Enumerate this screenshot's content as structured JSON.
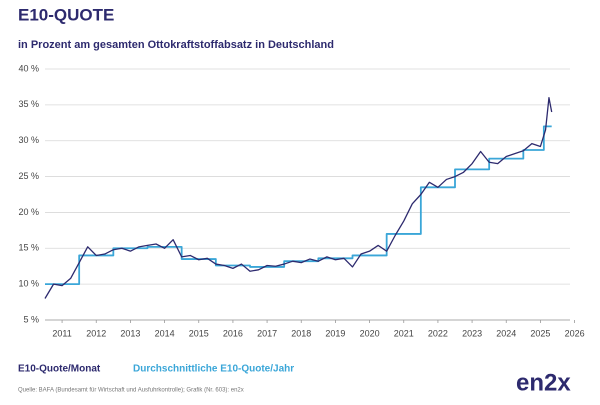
{
  "chart_data": {
    "type": "line",
    "title": "E10-QUOTE",
    "subtitle": "in Prozent am gesamten Ottokraftstoffabsatz in Deutschland",
    "source": "Quelle: BAFA (Bundesamt für Wirtschaft und Ausfuhrkontrolle); Grafik (Nr. 603): en2x",
    "logo": "en2x",
    "xlim": [
      2011,
      2026.6
    ],
    "xticks": [
      {
        "value": 2011.5,
        "label": "2011"
      },
      {
        "value": 2012.5,
        "label": "2012"
      },
      {
        "value": 2013.5,
        "label": "2013"
      },
      {
        "value": 2014.5,
        "label": "2014"
      },
      {
        "value": 2015.5,
        "label": "2015"
      },
      {
        "value": 2016.5,
        "label": "2016"
      },
      {
        "value": 2017.5,
        "label": "2017"
      },
      {
        "value": 2018.5,
        "label": "2018"
      },
      {
        "value": 2019.5,
        "label": "2019"
      },
      {
        "value": 2020.5,
        "label": "2020"
      },
      {
        "value": 2021.5,
        "label": "2021"
      },
      {
        "value": 2022.5,
        "label": "2022"
      },
      {
        "value": 2023.5,
        "label": "2023"
      },
      {
        "value": 2024.5,
        "label": "2024"
      },
      {
        "value": 2025.5,
        "label": "2025"
      },
      {
        "value": 2026.5,
        "label": "2026"
      }
    ],
    "ylim": [
      5,
      40
    ],
    "yticks": [
      {
        "value": 5,
        "label": "5 %"
      },
      {
        "value": 10,
        "label": "10 %"
      },
      {
        "value": 15,
        "label": "15 %"
      },
      {
        "value": 20,
        "label": "20 %"
      },
      {
        "value": 25,
        "label": "25 %"
      },
      {
        "value": 30,
        "label": "30 %"
      },
      {
        "value": 35,
        "label": "35 %"
      },
      {
        "value": 40,
        "label": "40 %"
      }
    ],
    "grid": true,
    "series": [
      {
        "name": "E10-Quote/Monat",
        "color": "#2d2a6e",
        "step": false,
        "x": [
          2011,
          2011.25,
          2011.5,
          2011.75,
          2012,
          2012.25,
          2012.5,
          2012.75,
          2013,
          2013.25,
          2013.5,
          2013.75,
          2014,
          2014.25,
          2014.5,
          2014.75,
          2015,
          2015.25,
          2015.5,
          2015.75,
          2016,
          2016.25,
          2016.5,
          2016.75,
          2017,
          2017.25,
          2017.5,
          2017.75,
          2018,
          2018.25,
          2018.5,
          2018.75,
          2019,
          2019.25,
          2019.5,
          2019.75,
          2020,
          2020.25,
          2020.5,
          2020.75,
          2021,
          2021.25,
          2021.5,
          2021.75,
          2022,
          2022.25,
          2022.5,
          2022.75,
          2023,
          2023.25,
          2023.5,
          2023.75,
          2024,
          2024.25,
          2024.5,
          2024.75,
          2025,
          2025.25,
          2025.5,
          2025.65,
          2025.75,
          2025.83
        ],
        "values": [
          8,
          10,
          9.8,
          10.8,
          13,
          15.2,
          14,
          14.2,
          14.8,
          15,
          14.6,
          15.2,
          15.4,
          15.6,
          15,
          16.2,
          13.8,
          14,
          13.4,
          13.6,
          12.8,
          12.6,
          12.2,
          12.8,
          11.8,
          12,
          12.6,
          12.5,
          12.8,
          13.2,
          13,
          13.5,
          13.2,
          13.8,
          13.4,
          13.6,
          12.4,
          14.2,
          14.6,
          15.4,
          14.6,
          16.8,
          18.8,
          21.2,
          22.5,
          24.2,
          23.5,
          24.6,
          25,
          25.6,
          26.8,
          28.5,
          27,
          26.8,
          27.8,
          28.2,
          28.6,
          29.6,
          29.2,
          31.5,
          36,
          34
        ]
      },
      {
        "name": "Durchschnittliche E10-Quote/Jahr",
        "color": "#3aa6d8",
        "step": true,
        "x": [
          2011,
          2012,
          2013,
          2014,
          2015,
          2016,
          2017,
          2018,
          2019,
          2020,
          2021,
          2022,
          2023,
          2024,
          2025,
          2025.6
        ],
        "values": [
          10,
          14,
          15,
          15.2,
          13.5,
          12.6,
          12.4,
          13.2,
          13.6,
          14,
          17,
          23.5,
          26,
          27.5,
          28.7,
          32
        ]
      }
    ]
  }
}
